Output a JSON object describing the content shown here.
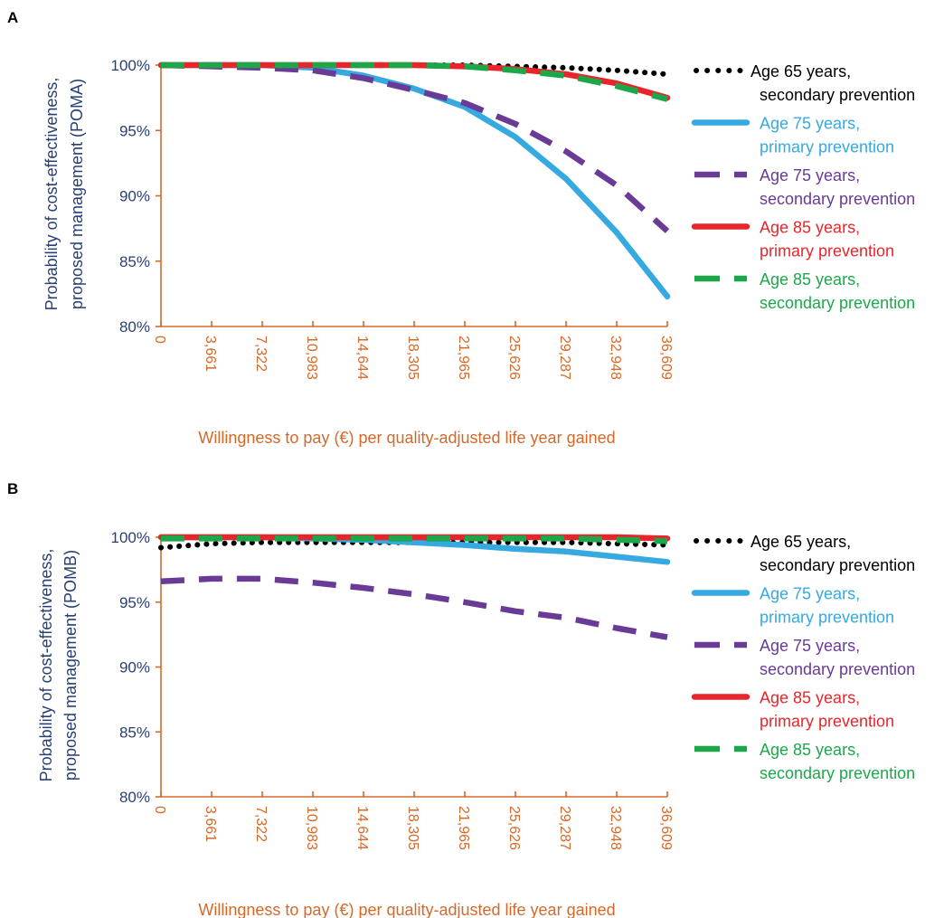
{
  "colors": {
    "y_axis": "#283f75",
    "x_axis": "#d4692a"
  },
  "chart_data": [
    {
      "type": "line",
      "panel_label": "A",
      "title": "",
      "xlabel": "Willingness to pay (€) per quality-adjusted life year gained",
      "ylabel": [
        "Probability of cost-effectiveness,",
        "proposed management (POMA)"
      ],
      "x_tick_labels": [
        "0",
        "3,661",
        "7,322",
        "10,983",
        "14,644",
        "18,305",
        "21,965",
        "25,626",
        "29,287",
        "32,948",
        "36,609"
      ],
      "xlim": [
        0,
        36609
      ],
      "y_tick_labels": [
        "100%",
        "95%",
        "90%",
        "85%",
        "80%"
      ],
      "y_ticks": [
        100,
        95,
        90,
        85,
        80
      ],
      "ylim": [
        80,
        100
      ],
      "grid": false,
      "legend_position": "right",
      "x": [
        0,
        3661,
        7322,
        10983,
        14644,
        18305,
        21965,
        25626,
        29287,
        32948,
        36609
      ],
      "series": [
        {
          "name_lines": [
            "Age 65 years,",
            "secondary prevention"
          ],
          "color": "#000000",
          "style": "dotted",
          "values": [
            100,
            100,
            100,
            100,
            100,
            100,
            100,
            99.9,
            99.8,
            99.6,
            99.3
          ]
        },
        {
          "name_lines": [
            "Age 75 years,",
            "primary prevention"
          ],
          "color": "#35a9e0",
          "style": "solid",
          "values": [
            100,
            100,
            100,
            99.8,
            99.2,
            98.2,
            96.8,
            94.5,
            91.3,
            87.2,
            82.3
          ]
        },
        {
          "name_lines": [
            "Age 75 years,",
            "secondary prevention"
          ],
          "color": "#6a3a97",
          "style": "dashed",
          "values": [
            100,
            99.9,
            99.8,
            99.6,
            99.0,
            98.1,
            97.1,
            95.5,
            93.4,
            90.8,
            87.3
          ]
        },
        {
          "name_lines": [
            "Age 85 years,",
            "primary prevention"
          ],
          "color": "#e7262b",
          "style": "solid",
          "values": [
            100,
            100,
            100,
            100,
            100,
            100,
            99.9,
            99.7,
            99.3,
            98.6,
            97.5
          ]
        },
        {
          "name_lines": [
            "Age 85 years,",
            "secondary prevention"
          ],
          "color": "#1ca84a",
          "style": "dashed",
          "values": [
            100,
            100,
            100,
            100,
            100,
            100,
            99.9,
            99.6,
            99.2,
            98.4,
            97.4
          ]
        }
      ]
    },
    {
      "type": "line",
      "panel_label": "B",
      "title": "",
      "xlabel": "Willingness to pay (€) per quality-adjusted life year gained",
      "ylabel": [
        "Probability of cost-effectiveness,",
        "proposed management (POMB)"
      ],
      "x_tick_labels": [
        "0",
        "3,661",
        "7,322",
        "10,983",
        "14,644",
        "18,305",
        "21,965",
        "25,626",
        "29,287",
        "32,948",
        "36,609"
      ],
      "xlim": [
        0,
        36609
      ],
      "y_tick_labels": [
        "100%",
        "95%",
        "90%",
        "85%",
        "80%"
      ],
      "y_ticks": [
        100,
        95,
        90,
        85,
        80
      ],
      "ylim": [
        80,
        100
      ],
      "grid": false,
      "legend_position": "right",
      "x": [
        0,
        3661,
        7322,
        10983,
        14644,
        18305,
        21965,
        25626,
        29287,
        32948,
        36609
      ],
      "series": [
        {
          "name_lines": [
            "Age 65 years,",
            "secondary prevention"
          ],
          "color": "#000000",
          "style": "dotted",
          "values": [
            99.2,
            99.5,
            99.6,
            99.6,
            99.6,
            99.6,
            99.6,
            99.6,
            99.6,
            99.5,
            99.4
          ]
        },
        {
          "name_lines": [
            "Age 75 years,",
            "primary prevention"
          ],
          "color": "#35a9e0",
          "style": "solid",
          "values": [
            100,
            100,
            100,
            99.9,
            99.8,
            99.6,
            99.4,
            99.1,
            98.9,
            98.5,
            98.1
          ]
        },
        {
          "name_lines": [
            "Age 75 years,",
            "secondary prevention"
          ],
          "color": "#6a3a97",
          "style": "dashed",
          "values": [
            96.6,
            96.8,
            96.8,
            96.5,
            96.1,
            95.6,
            95.0,
            94.3,
            93.8,
            93.0,
            92.3
          ]
        },
        {
          "name_lines": [
            "Age 85 years,",
            "primary prevention"
          ],
          "color": "#e7262b",
          "style": "solid",
          "values": [
            100,
            100,
            100,
            100,
            100,
            100,
            100,
            100,
            100,
            100,
            99.9
          ]
        },
        {
          "name_lines": [
            "Age 85 years,",
            "secondary prevention"
          ],
          "color": "#1ca84a",
          "style": "dashed",
          "values": [
            99.9,
            99.9,
            99.9,
            99.9,
            99.9,
            99.9,
            99.9,
            99.9,
            99.9,
            99.8,
            99.7
          ]
        }
      ]
    }
  ]
}
